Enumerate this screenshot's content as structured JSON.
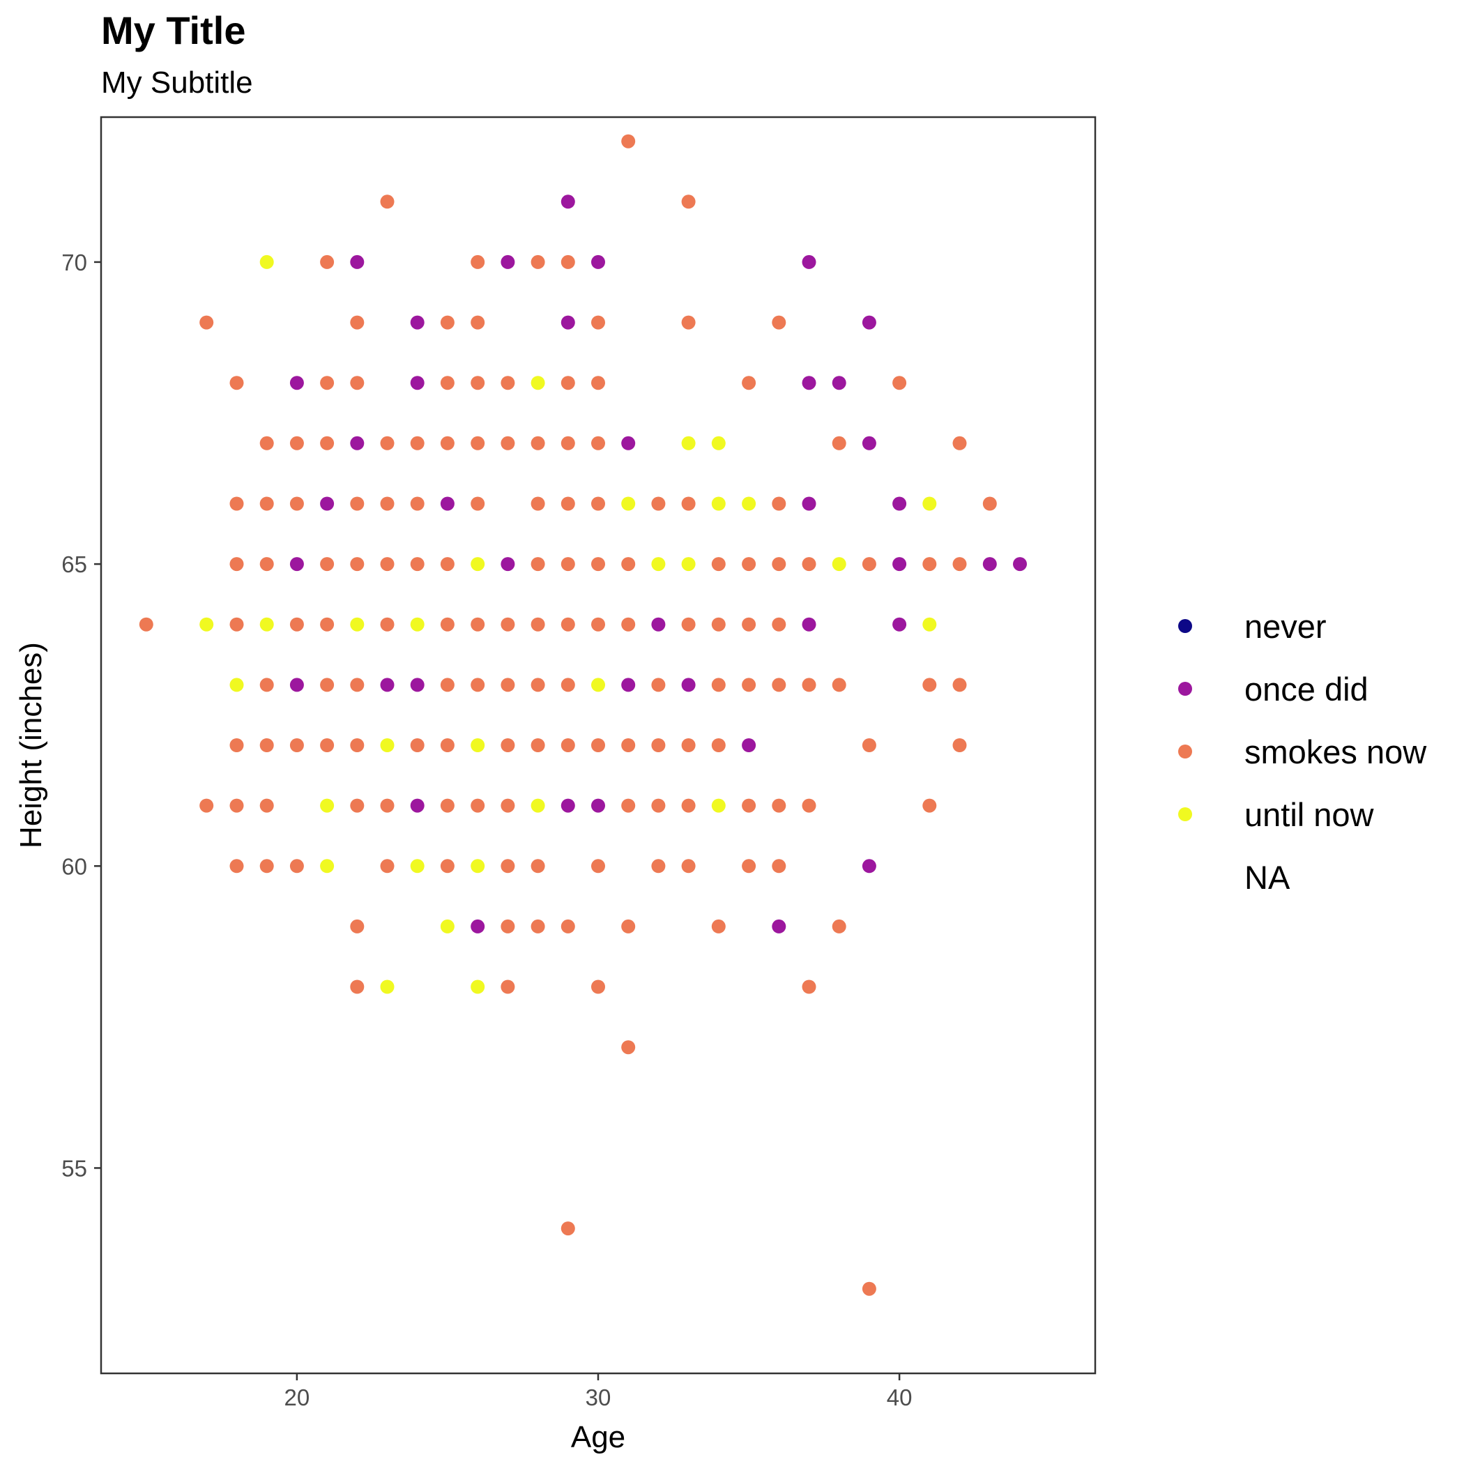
{
  "chart_data": {
    "type": "scatter",
    "title": "My Title",
    "subtitle": "My Subtitle",
    "xlabel": "Age",
    "ylabel": "Height (inches)",
    "xlim": [
      13.5,
      46.5
    ],
    "ylim": [
      51.6,
      72.4
    ],
    "x_ticks": [
      20,
      30,
      40
    ],
    "y_ticks": [
      55,
      60,
      65,
      70
    ],
    "grid": false,
    "legend_position": "right",
    "legend": [
      {
        "key": "never",
        "label": "never",
        "color": "#0d0887"
      },
      {
        "key": "once",
        "label": "once did",
        "color": "#9c179e"
      },
      {
        "key": "smokes",
        "label": "smokes now",
        "color": "#ed7953"
      },
      {
        "key": "until",
        "label": "until now",
        "color": "#f0f921"
      },
      {
        "key": "na",
        "label": "NA",
        "color": ""
      }
    ],
    "series": [
      {
        "name": "once did",
        "color": "#9c179e",
        "points": [
          [
            22,
            70
          ],
          [
            24,
            69
          ],
          [
            29,
            71
          ],
          [
            27,
            70
          ],
          [
            30,
            70
          ],
          [
            29,
            69
          ],
          [
            37,
            70
          ],
          [
            39,
            69
          ],
          [
            20,
            68
          ],
          [
            24,
            68
          ],
          [
            37,
            68
          ],
          [
            38,
            68
          ],
          [
            22,
            67
          ],
          [
            31,
            67
          ],
          [
            39,
            67
          ],
          [
            21,
            66
          ],
          [
            25,
            66
          ],
          [
            37,
            66
          ],
          [
            40,
            66
          ],
          [
            20,
            65
          ],
          [
            27,
            65
          ],
          [
            40,
            65
          ],
          [
            43,
            65
          ],
          [
            44,
            65
          ],
          [
            32,
            64
          ],
          [
            37,
            64
          ],
          [
            40,
            64
          ],
          [
            20,
            63
          ],
          [
            23,
            63
          ],
          [
            24,
            63
          ],
          [
            31,
            63
          ],
          [
            33,
            63
          ],
          [
            35,
            62
          ],
          [
            24,
            61
          ],
          [
            29,
            61
          ],
          [
            30,
            61
          ],
          [
            39,
            60
          ],
          [
            26,
            59
          ],
          [
            36,
            59
          ]
        ]
      },
      {
        "name": "smokes now",
        "color": "#ed7953",
        "points": [
          [
            31,
            72
          ],
          [
            23,
            71
          ],
          [
            33,
            71
          ],
          [
            21,
            70
          ],
          [
            26,
            70
          ],
          [
            28,
            70
          ],
          [
            29,
            70
          ],
          [
            17,
            69
          ],
          [
            22,
            69
          ],
          [
            25,
            69
          ],
          [
            26,
            69
          ],
          [
            30,
            69
          ],
          [
            33,
            69
          ],
          [
            36,
            69
          ],
          [
            18,
            68
          ],
          [
            21,
            68
          ],
          [
            22,
            68
          ],
          [
            25,
            68
          ],
          [
            26,
            68
          ],
          [
            27,
            68
          ],
          [
            29,
            68
          ],
          [
            30,
            68
          ],
          [
            35,
            68
          ],
          [
            40,
            68
          ],
          [
            19,
            67
          ],
          [
            20,
            67
          ],
          [
            21,
            67
          ],
          [
            23,
            67
          ],
          [
            24,
            67
          ],
          [
            25,
            67
          ],
          [
            26,
            67
          ],
          [
            27,
            67
          ],
          [
            28,
            67
          ],
          [
            29,
            67
          ],
          [
            30,
            67
          ],
          [
            38,
            67
          ],
          [
            42,
            67
          ],
          [
            18,
            66
          ],
          [
            19,
            66
          ],
          [
            20,
            66
          ],
          [
            22,
            66
          ],
          [
            23,
            66
          ],
          [
            24,
            66
          ],
          [
            26,
            66
          ],
          [
            28,
            66
          ],
          [
            29,
            66
          ],
          [
            30,
            66
          ],
          [
            32,
            66
          ],
          [
            33,
            66
          ],
          [
            36,
            66
          ],
          [
            43,
            66
          ],
          [
            18,
            65
          ],
          [
            19,
            65
          ],
          [
            21,
            65
          ],
          [
            22,
            65
          ],
          [
            23,
            65
          ],
          [
            24,
            65
          ],
          [
            25,
            65
          ],
          [
            28,
            65
          ],
          [
            29,
            65
          ],
          [
            30,
            65
          ],
          [
            31,
            65
          ],
          [
            34,
            65
          ],
          [
            35,
            65
          ],
          [
            36,
            65
          ],
          [
            37,
            65
          ],
          [
            39,
            65
          ],
          [
            41,
            65
          ],
          [
            42,
            65
          ],
          [
            15,
            64
          ],
          [
            18,
            64
          ],
          [
            20,
            64
          ],
          [
            21,
            64
          ],
          [
            23,
            64
          ],
          [
            25,
            64
          ],
          [
            26,
            64
          ],
          [
            27,
            64
          ],
          [
            28,
            64
          ],
          [
            29,
            64
          ],
          [
            30,
            64
          ],
          [
            31,
            64
          ],
          [
            33,
            64
          ],
          [
            34,
            64
          ],
          [
            35,
            64
          ],
          [
            36,
            64
          ],
          [
            19,
            63
          ],
          [
            21,
            63
          ],
          [
            22,
            63
          ],
          [
            25,
            63
          ],
          [
            26,
            63
          ],
          [
            27,
            63
          ],
          [
            28,
            63
          ],
          [
            29,
            63
          ],
          [
            32,
            63
          ],
          [
            34,
            63
          ],
          [
            35,
            63
          ],
          [
            36,
            63
          ],
          [
            37,
            63
          ],
          [
            38,
            63
          ],
          [
            41,
            63
          ],
          [
            42,
            63
          ],
          [
            18,
            62
          ],
          [
            19,
            62
          ],
          [
            20,
            62
          ],
          [
            21,
            62
          ],
          [
            22,
            62
          ],
          [
            24,
            62
          ],
          [
            25,
            62
          ],
          [
            27,
            62
          ],
          [
            28,
            62
          ],
          [
            29,
            62
          ],
          [
            30,
            62
          ],
          [
            31,
            62
          ],
          [
            32,
            62
          ],
          [
            33,
            62
          ],
          [
            34,
            62
          ],
          [
            39,
            62
          ],
          [
            42,
            62
          ],
          [
            17,
            61
          ],
          [
            18,
            61
          ],
          [
            19,
            61
          ],
          [
            22,
            61
          ],
          [
            23,
            61
          ],
          [
            25,
            61
          ],
          [
            26,
            61
          ],
          [
            27,
            61
          ],
          [
            31,
            61
          ],
          [
            32,
            61
          ],
          [
            33,
            61
          ],
          [
            35,
            61
          ],
          [
            36,
            61
          ],
          [
            37,
            61
          ],
          [
            41,
            61
          ],
          [
            18,
            60
          ],
          [
            19,
            60
          ],
          [
            20,
            60
          ],
          [
            23,
            60
          ],
          [
            25,
            60
          ],
          [
            27,
            60
          ],
          [
            28,
            60
          ],
          [
            30,
            60
          ],
          [
            32,
            60
          ],
          [
            33,
            60
          ],
          [
            35,
            60
          ],
          [
            36,
            60
          ],
          [
            22,
            59
          ],
          [
            27,
            59
          ],
          [
            28,
            59
          ],
          [
            29,
            59
          ],
          [
            31,
            59
          ],
          [
            34,
            59
          ],
          [
            38,
            59
          ],
          [
            22,
            58
          ],
          [
            27,
            58
          ],
          [
            30,
            58
          ],
          [
            37,
            58
          ],
          [
            31,
            57
          ],
          [
            29,
            54
          ],
          [
            39,
            53
          ]
        ]
      },
      {
        "name": "until now",
        "color": "#f0f921",
        "points": [
          [
            19,
            70
          ],
          [
            28,
            68
          ],
          [
            33,
            67
          ],
          [
            34,
            67
          ],
          [
            31,
            66
          ],
          [
            34,
            66
          ],
          [
            35,
            66
          ],
          [
            41,
            66
          ],
          [
            26,
            65
          ],
          [
            32,
            65
          ],
          [
            33,
            65
          ],
          [
            38,
            65
          ],
          [
            17,
            64
          ],
          [
            19,
            64
          ],
          [
            22,
            64
          ],
          [
            24,
            64
          ],
          [
            41,
            64
          ],
          [
            18,
            63
          ],
          [
            30,
            63
          ],
          [
            23,
            62
          ],
          [
            26,
            62
          ],
          [
            21,
            61
          ],
          [
            28,
            61
          ],
          [
            34,
            61
          ],
          [
            21,
            60
          ],
          [
            24,
            60
          ],
          [
            26,
            60
          ],
          [
            25,
            59
          ],
          [
            23,
            58
          ],
          [
            26,
            58
          ]
        ]
      }
    ]
  }
}
